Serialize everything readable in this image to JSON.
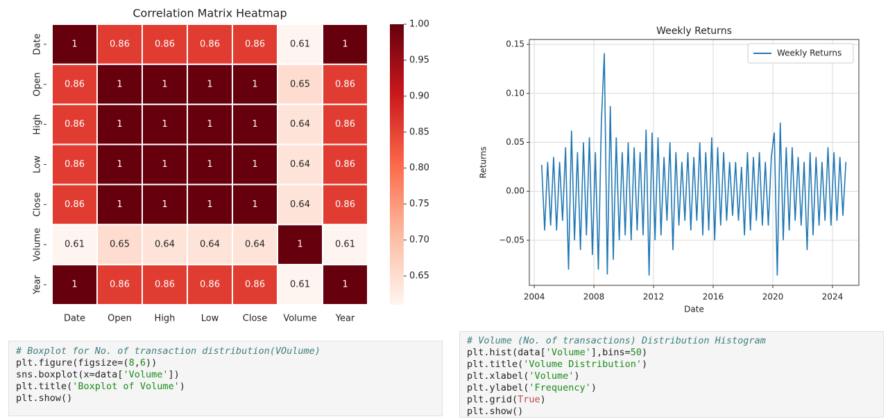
{
  "chart_data": [
    {
      "type": "heatmap",
      "title": "Correlation Matrix Heatmap",
      "categories": [
        "Date",
        "Open",
        "High",
        "Low",
        "Close",
        "Volume",
        "Year"
      ],
      "values": [
        [
          1,
          0.86,
          0.86,
          0.86,
          0.86,
          0.61,
          1
        ],
        [
          0.86,
          1,
          1,
          1,
          1,
          0.65,
          0.86
        ],
        [
          0.86,
          1,
          1,
          1,
          1,
          0.64,
          0.86
        ],
        [
          0.86,
          1,
          1,
          1,
          1,
          0.64,
          0.86
        ],
        [
          0.86,
          1,
          1,
          1,
          1,
          0.64,
          0.86
        ],
        [
          0.61,
          0.65,
          0.64,
          0.64,
          0.64,
          1,
          0.61
        ],
        [
          1,
          0.86,
          0.86,
          0.86,
          0.86,
          0.61,
          1
        ]
      ],
      "colorscale": [
        "#fff5f0",
        "#fcbba1",
        "#fb6a4a",
        "#cb181d",
        "#67000d"
      ],
      "zlim": [
        0.61,
        1
      ],
      "zticks": [
        0.65,
        {
          "value": 0.7,
          "label": "0.70"
        },
        0.75,
        {
          "value": 0.8,
          "label": "0.80"
        },
        0.85,
        {
          "value": 0.9,
          "label": "0.90"
        },
        0.95,
        {
          "value": 1,
          "label": "1.00"
        }
      ]
    },
    {
      "type": "line",
      "title": "Weekly Returns",
      "xlabel": "Date",
      "ylabel": "Returns",
      "x": [
        2004.5,
        2004.7,
        2004.9,
        2005.1,
        2005.3,
        2005.5,
        2005.7,
        2005.9,
        2006.1,
        2006.3,
        2006.5,
        2006.7,
        2006.9,
        2007.1,
        2007.3,
        2007.5,
        2007.7,
        2007.9,
        2008.1,
        2008.3,
        2008.5,
        2008.7,
        2008.9,
        2009.1,
        2009.3,
        2009.5,
        2009.7,
        2009.9,
        2010.1,
        2010.3,
        2010.5,
        2010.7,
        2010.9,
        2011.1,
        2011.3,
        2011.5,
        2011.7,
        2011.9,
        2012.1,
        2012.3,
        2012.5,
        2012.7,
        2012.9,
        2013.1,
        2013.3,
        2013.5,
        2013.7,
        2013.9,
        2014.1,
        2014.3,
        2014.5,
        2014.7,
        2014.9,
        2015.1,
        2015.3,
        2015.5,
        2015.7,
        2015.9,
        2016.1,
        2016.3,
        2016.5,
        2016.7,
        2016.9,
        2017.1,
        2017.3,
        2017.5,
        2017.7,
        2017.9,
        2018.1,
        2018.3,
        2018.5,
        2018.7,
        2018.9,
        2019.1,
        2019.3,
        2019.5,
        2019.7,
        2019.9,
        2020.1,
        2020.3,
        2020.5,
        2020.7,
        2020.9,
        2021.1,
        2021.3,
        2021.5,
        2021.7,
        2021.9,
        2022.1,
        2022.3,
        2022.5,
        2022.7,
        2022.9,
        2023.1,
        2023.3,
        2023.5,
        2023.7,
        2023.9,
        2024.1,
        2024.3,
        2024.5,
        2024.7,
        2024.9
      ],
      "series": [
        {
          "name": "Weekly Returns",
          "color": "#1f77b4",
          "values": [
            0.027,
            -0.04,
            0.03,
            -0.035,
            0.035,
            -0.04,
            0.03,
            -0.03,
            0.045,
            -0.08,
            0.062,
            -0.05,
            0.04,
            -0.06,
            0.05,
            -0.045,
            0.055,
            -0.065,
            0.04,
            -0.08,
            0.07,
            0.141,
            -0.085,
            0.087,
            -0.07,
            0.055,
            -0.05,
            0.04,
            -0.045,
            0.05,
            -0.05,
            0.045,
            -0.04,
            0.04,
            -0.045,
            0.063,
            -0.086,
            0.06,
            -0.05,
            0.055,
            -0.045,
            0.035,
            -0.03,
            0.05,
            -0.06,
            0.04,
            -0.035,
            0.03,
            -0.03,
            0.04,
            -0.04,
            0.035,
            -0.03,
            0.05,
            -0.045,
            0.04,
            -0.04,
            0.055,
            -0.05,
            0.045,
            -0.035,
            0.04,
            -0.03,
            0.03,
            -0.025,
            0.03,
            -0.03,
            0.025,
            -0.045,
            0.04,
            -0.04,
            0.035,
            -0.03,
            0.04,
            -0.035,
            0.03,
            -0.035,
            0.035,
            0.06,
            -0.086,
            0.07,
            -0.05,
            0.045,
            -0.04,
            0.045,
            -0.03,
            0.035,
            -0.035,
            0.03,
            -0.06,
            0.04,
            -0.045,
            0.035,
            -0.035,
            0.03,
            -0.03,
            0.045,
            -0.035,
            0.04,
            -0.03,
            0.035,
            -0.025,
            0.03
          ]
        }
      ],
      "xlim": [
        2003.67,
        2025.77
      ],
      "xticks": [
        2004,
        2008,
        2012,
        2016,
        2020,
        2024
      ],
      "ylim": [
        -0.096,
        0.155
      ],
      "yticks": [
        {
          "value": -0.05,
          "label": "−0.05"
        },
        {
          "value": 0,
          "label": "0.00"
        },
        0.05,
        {
          "value": 0.1,
          "label": "0.10"
        },
        0.15
      ],
      "grid": true,
      "legend": "upper right"
    }
  ],
  "code_cells": [
    {
      "lines": [
        "# Boxplot for No. of transaction distribution(VOulume)",
        "plt.figure(figsize=(8,6))",
        "sns.boxplot(x=data['Volume'])",
        "plt.title('Boxplot of Volume')",
        "plt.show()"
      ]
    },
    {
      "lines": [
        "# Volume (No. of transactions) Distribution Histogram",
        "plt.hist(data['Volume'],bins=50)",
        "plt.title('Volume Distribution')",
        "plt.xlabel('Volume')",
        "plt.ylabel('Frequency')",
        "plt.grid(True)",
        "plt.show()"
      ]
    }
  ]
}
